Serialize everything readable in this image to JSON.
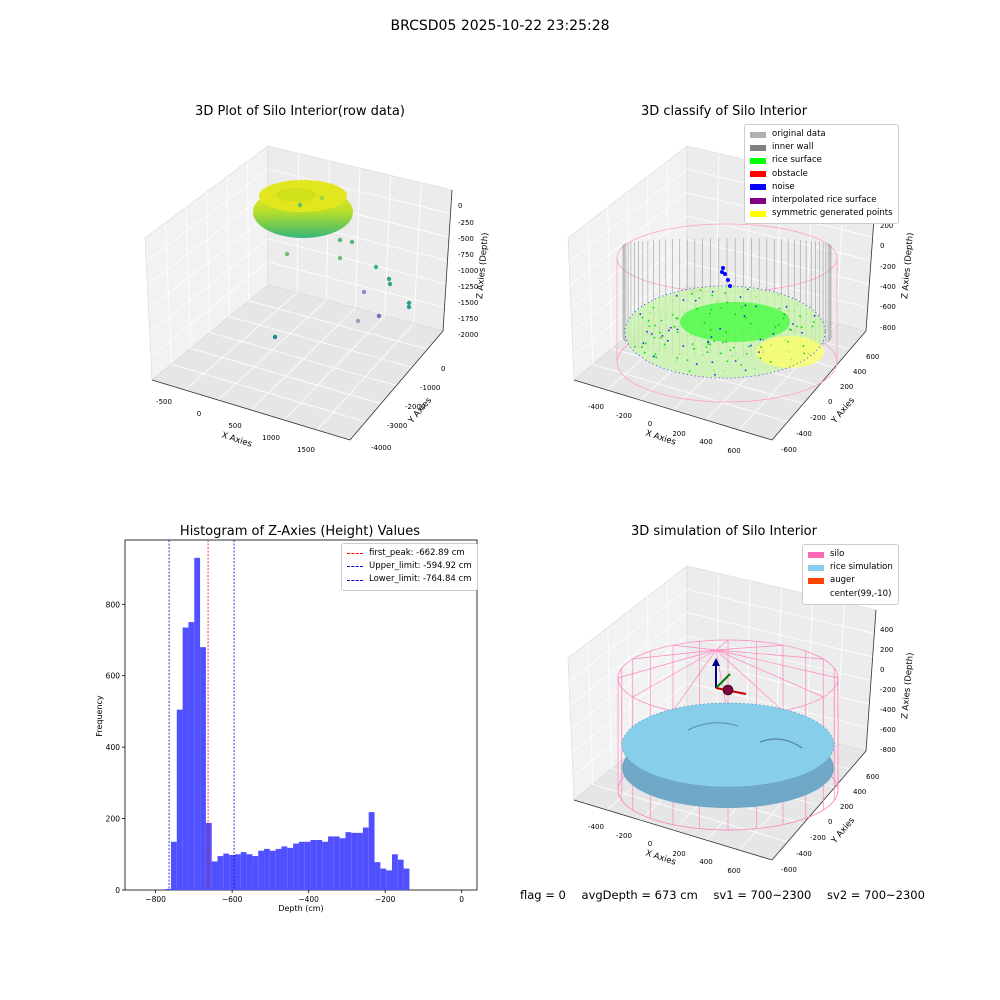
{
  "suptitle": "BRCSD05 2025-10-22 23:25:28",
  "status": {
    "flag": "flag = 0",
    "avg_depth": "avgDepth = 673 cm",
    "sv1": "sv1 = 700~2300",
    "sv2": "sv2 = 700~2300"
  },
  "colors": {
    "hist_bar": "#5050ff",
    "first_peak_line": "#ff0000",
    "limit_line": "#0000cc",
    "silo": "#ff69b4",
    "rice_sim": "#87ceeb",
    "auger": "#ff4500",
    "original": "#b0b0b0",
    "inner_wall": "#808080",
    "rice_surface": "#00ff00",
    "obstacle": "#ff0000",
    "noise": "#0000ff",
    "interp": "#800080",
    "symmetric": "#ffff00"
  },
  "chart_data": [
    {
      "type": "scatter",
      "title": "3D Plot of Silo Interior(row data)",
      "xlabel": "X Axies",
      "ylabel": "Y Axies",
      "zlabel": "Z Axies (Depth)",
      "x_ticks": [
        "-500",
        "0",
        "500",
        "1000",
        "1500"
      ],
      "y_ticks": [
        "-4000",
        "-3000",
        "-2000",
        "-1000",
        "0"
      ],
      "z_ticks": [
        "0",
        "-250",
        "-500",
        "-750",
        "-1000",
        "-1250",
        "-1500",
        "-1750",
        "-2000"
      ],
      "xlim": [
        -700,
        1800
      ],
      "ylim": [
        -4300,
        700
      ],
      "zlim": [
        -2100,
        100
      ],
      "colormap": "viridis",
      "grid": true
    },
    {
      "type": "scatter",
      "title": "3D classify of Silo Interior",
      "xlabel": "X Axies",
      "ylabel": "Y Axies",
      "zlabel": "Z Axies (Depth)",
      "x_ticks": [
        "-400",
        "-200",
        "0",
        "200",
        "400",
        "600"
      ],
      "y_ticks": [
        "-600",
        "-400",
        "-200",
        "0",
        "200",
        "400",
        "600"
      ],
      "z_ticks": [
        "200",
        "0",
        "-200",
        "-400",
        "-600",
        "-800"
      ],
      "legend_position": "top-right",
      "legend": [
        "original data",
        "inner wall",
        "rice surface",
        "obstacle",
        "noise",
        "interpolated rice surface",
        "symmetric generated points"
      ],
      "grid": true
    },
    {
      "type": "bar",
      "title": "Histogram of Z-Axies (Height) Values",
      "xlabel": "Depth (cm)",
      "ylabel": "Frequency",
      "xlim": [
        -880,
        40
      ],
      "ylim": [
        0,
        980
      ],
      "x_ticks": [
        "-800",
        "-600",
        "-400",
        "-200",
        "0"
      ],
      "y_ticks": [
        "0",
        "200",
        "400",
        "600",
        "800"
      ],
      "bin_width": 15.2,
      "bin_start": -775,
      "values": [
        3,
        135,
        505,
        735,
        750,
        930,
        680,
        188,
        80,
        95,
        102,
        98,
        100,
        106,
        100,
        95,
        110,
        115,
        110,
        115,
        122,
        118,
        130,
        135,
        135,
        140,
        140,
        135,
        150,
        150,
        145,
        162,
        160,
        160,
        175,
        218,
        78,
        60,
        55,
        100,
        85,
        60
      ],
      "vlines": [
        {
          "label": "first_peak: -662.89 cm",
          "value": -662.89,
          "color": "#ff0000"
        },
        {
          "label": "Upper_limit: -594.92 cm",
          "value": -594.92,
          "color": "#0000cc"
        },
        {
          "label": "Lower_limit: -764.84 cm",
          "value": -764.84,
          "color": "#0000cc"
        }
      ],
      "legend_position": "top-right"
    },
    {
      "type": "scatter",
      "title": "3D simulation of Silo Interior",
      "xlabel": "X Axies",
      "ylabel": "Y Axies",
      "zlabel": "Z Axies (Depth)",
      "x_ticks": [
        "-400",
        "-200",
        "0",
        "200",
        "400",
        "600"
      ],
      "y_ticks": [
        "-600",
        "-400",
        "-200",
        "0",
        "200",
        "400",
        "600"
      ],
      "z_ticks": [
        "400",
        "200",
        "0",
        "-200",
        "-400",
        "-600",
        "-800"
      ],
      "legend_position": "top-right",
      "legend": [
        "silo",
        "rice simulation",
        "auger",
        "center(99,-10)"
      ],
      "grid": true
    }
  ]
}
